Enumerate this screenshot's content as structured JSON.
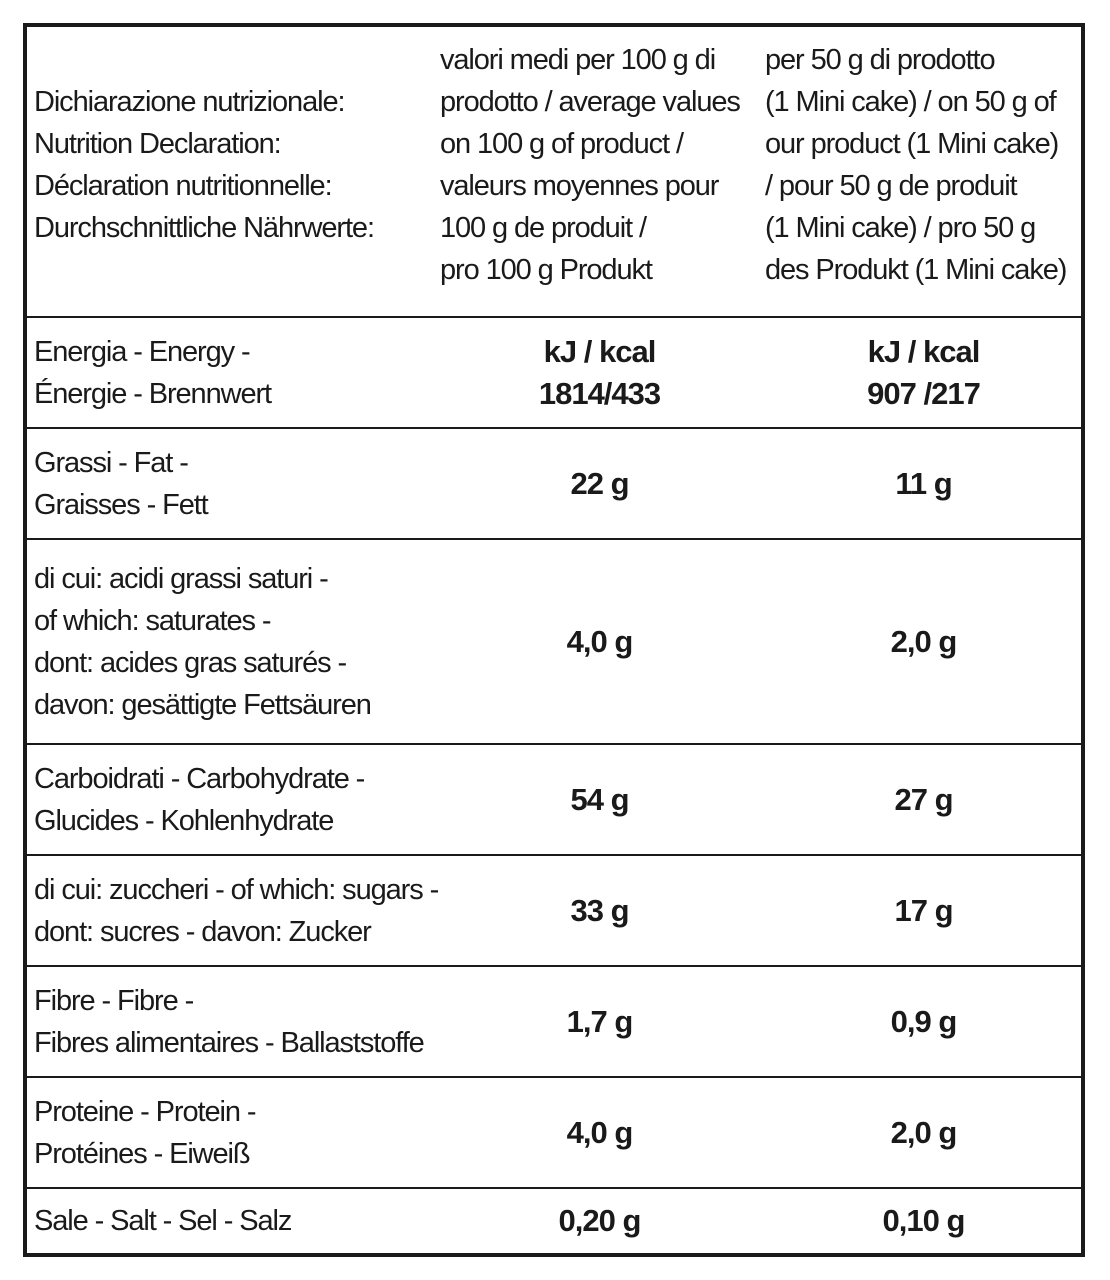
{
  "header": {
    "label_lines": "Dichiarazione nutrizionale:\nNutrition Declaration:\nDéclaration nutritionnelle:\nDurchschnittliche Nährwerte:",
    "col1_lines": "valori medi per 100 g di\nprodotto / average values\non 100 g of product /\nvaleurs moyennes pour\n100 g de produit /\npro 100 g Produkt",
    "col2_lines": "per 50 g di prodotto\n(1 Mini cake) / on 50 g of\nour product (1 Mini cake)\n/ pour 50 g de produit\n(1 Mini cake) / pro 50 g\ndes Produkt (1 Mini cake)"
  },
  "rows": [
    {
      "label": "Energia - Energy -\nÉnergie - Brennwert",
      "per100": "kJ / kcal\n1814/433",
      "per50": "kJ / kcal\n907 /217"
    },
    {
      "label": "Grassi - Fat -\nGraisses - Fett",
      "per100": "22 g",
      "per50": "11 g"
    },
    {
      "label": "di cui: acidi grassi saturi -\nof which: saturates -\ndont: acides gras saturés -\ndavon: gesättigte Fettsäuren",
      "per100": "4,0 g",
      "per50": "2,0 g"
    },
    {
      "label": "Carboidrati - Carbohydrate -\nGlucides - Kohlenhydrate",
      "per100": "54 g",
      "per50": "27 g"
    },
    {
      "label": "di cui: zuccheri - of which: sugars -\ndont: sucres - davon: Zucker",
      "per100": "33 g",
      "per50": "17 g"
    },
    {
      "label": "Fibre - Fibre -\nFibres alimentaires - Ballaststoffe",
      "per100": "1,7 g",
      "per50": "0,9 g"
    },
    {
      "label": "Proteine - Protein -\nProtéines - Eiweiß",
      "per100": "4,0 g",
      "per50": "2,0 g"
    },
    {
      "label": "Sale - Salt - Sel - Salz",
      "per100": "0,20 g",
      "per50": "0,10 g"
    }
  ]
}
